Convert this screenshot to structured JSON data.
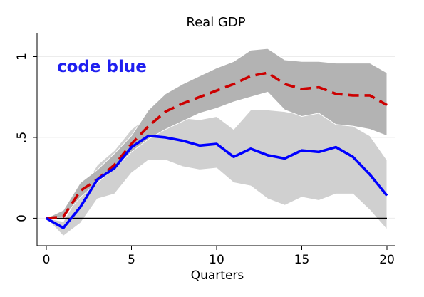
{
  "chart_data": {
    "type": "line",
    "title": "Real GDP",
    "xlabel": "Quarters",
    "ylabel": "",
    "annotation": "code blue",
    "xlim": [
      0,
      20
    ],
    "ylim": [
      -0.17,
      1.13
    ],
    "x_ticks": [
      0,
      5,
      10,
      15,
      20
    ],
    "x_tick_labels": [
      "0",
      "5",
      "10",
      "15",
      "20"
    ],
    "y_ticks": [
      0,
      0.5,
      1
    ],
    "y_tick_labels": [
      "0",
      ".5",
      "1"
    ],
    "grid": "horizontal",
    "zero_line": true,
    "x": [
      0,
      1,
      2,
      3,
      4,
      5,
      6,
      7,
      8,
      9,
      10,
      11,
      12,
      13,
      14,
      15,
      16,
      17,
      18,
      19,
      20
    ],
    "bands": [
      {
        "color": "#d0d0d0",
        "lower": [
          0.0,
          -0.11,
          -0.03,
          0.12,
          0.15,
          0.28,
          0.36,
          0.36,
          0.32,
          0.3,
          0.31,
          0.22,
          0.2,
          0.12,
          0.08,
          0.13,
          0.11,
          0.15,
          0.15,
          0.05,
          -0.07
        ],
        "upper": [
          0.0,
          -0.02,
          0.16,
          0.33,
          0.42,
          0.55,
          0.63,
          0.63,
          0.62,
          0.61,
          0.63,
          0.55,
          0.67,
          0.67,
          0.66,
          0.64,
          0.66,
          0.58,
          0.57,
          0.51,
          0.36
        ]
      },
      {
        "color": "#b3b3b3",
        "lower": [
          0.0,
          0.01,
          0.13,
          0.22,
          0.31,
          0.41,
          0.49,
          0.55,
          0.6,
          0.65,
          0.68,
          0.72,
          0.75,
          0.78,
          0.67,
          0.63,
          0.65,
          0.58,
          0.57,
          0.55,
          0.51
        ],
        "upper": [
          0.0,
          0.05,
          0.22,
          0.3,
          0.4,
          0.51,
          0.67,
          0.77,
          0.83,
          0.88,
          0.93,
          0.97,
          1.04,
          1.05,
          0.98,
          0.97,
          0.97,
          0.96,
          0.96,
          0.96,
          0.9
        ]
      }
    ],
    "series": [
      {
        "color": "#cc0000",
        "style": "dashed",
        "values": [
          0.0,
          0.01,
          0.17,
          0.24,
          0.33,
          0.46,
          0.57,
          0.66,
          0.71,
          0.75,
          0.79,
          0.83,
          0.88,
          0.9,
          0.83,
          0.8,
          0.81,
          0.77,
          0.76,
          0.76,
          0.7
        ]
      },
      {
        "color": "#0000ff",
        "style": "solid",
        "values": [
          0.0,
          -0.06,
          0.07,
          0.24,
          0.31,
          0.44,
          0.51,
          0.5,
          0.48,
          0.45,
          0.46,
          0.38,
          0.43,
          0.39,
          0.37,
          0.42,
          0.41,
          0.44,
          0.38,
          0.27,
          0.14
        ]
      }
    ]
  }
}
